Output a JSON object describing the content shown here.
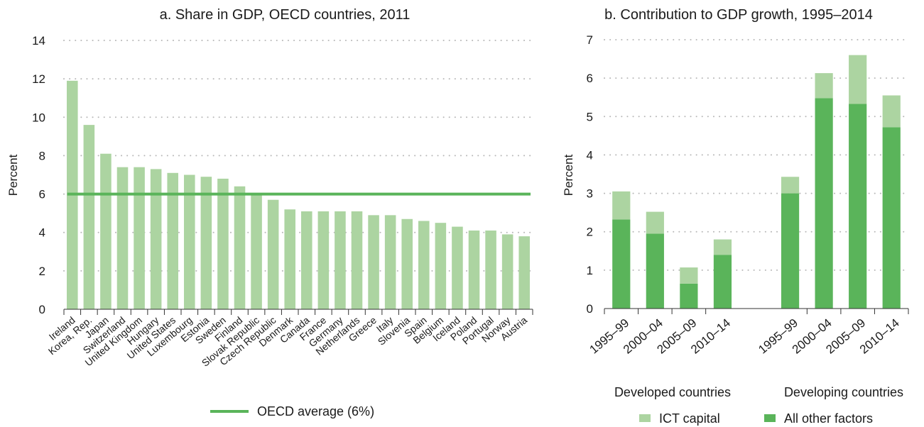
{
  "colors": {
    "light_green": "#acd4a1",
    "dark_green": "#5ab45a",
    "average_line": "#5ab45a",
    "grid": "#b8b8b8",
    "axis": "#333333",
    "text": "#1a1a1a"
  },
  "chart_data": [
    {
      "type": "bar",
      "title": "a. Share in GDP, OECD countries, 2011",
      "ylabel": "Percent",
      "xlabel": "",
      "ylim": [
        0,
        14
      ],
      "yticks": [
        0,
        2,
        4,
        6,
        8,
        10,
        12,
        14
      ],
      "grid": "horizontal dotted",
      "categories": [
        "Ireland",
        "Korea, Rep.",
        "Japan",
        "Switzerland",
        "United Kingdom",
        "Hungary",
        "United States",
        "Luxembourg",
        "Estonia",
        "Sweden",
        "Finland",
        "Slovak Republic",
        "Czech Republic",
        "Denmark",
        "Canada",
        "France",
        "Germany",
        "Netherlands",
        "Greece",
        "Italy",
        "Slovenia",
        "Spain",
        "Belgium",
        "Iceland",
        "Poland",
        "Portugal",
        "Norway",
        "Austria"
      ],
      "values": [
        11.9,
        9.6,
        8.1,
        7.4,
        7.4,
        7.3,
        7.1,
        7.0,
        6.9,
        6.8,
        6.4,
        6.0,
        5.7,
        5.2,
        5.1,
        5.1,
        5.1,
        5.1,
        4.9,
        4.9,
        4.7,
        4.6,
        4.5,
        4.3,
        4.1,
        4.1,
        3.9,
        3.8
      ],
      "reference_line": {
        "name": "OECD average (6%)",
        "value": 6
      },
      "legend": {
        "placement": "bottom-center",
        "entries": [
          "OECD average (6%)"
        ]
      }
    },
    {
      "type": "bar",
      "stacked": true,
      "title": "b. Contribution to GDP growth, 1995–2014",
      "ylabel": "Percent",
      "xlabel": "",
      "ylim": [
        0,
        7
      ],
      "yticks": [
        0,
        1,
        2,
        3,
        4,
        5,
        6,
        7
      ],
      "grid": "horizontal dotted",
      "groups": [
        {
          "label": "Developed countries",
          "categories": [
            "1995–99",
            "2000–04",
            "2005–09",
            "2010–14"
          ]
        },
        {
          "label": "Developing countries",
          "categories": [
            "1995–99",
            "2000–04",
            "2005–09",
            "2010–14"
          ]
        }
      ],
      "series": [
        {
          "name": "All other factors",
          "values": [
            2.32,
            1.95,
            0.65,
            1.4,
            3.0,
            5.48,
            5.33,
            4.72
          ]
        },
        {
          "name": "ICT capital",
          "values": [
            0.73,
            0.57,
            0.42,
            0.4,
            0.43,
            0.65,
            1.27,
            0.83
          ]
        }
      ],
      "legend": {
        "placement": "bottom-center",
        "entries": [
          "ICT capital",
          "All other factors"
        ]
      }
    }
  ]
}
